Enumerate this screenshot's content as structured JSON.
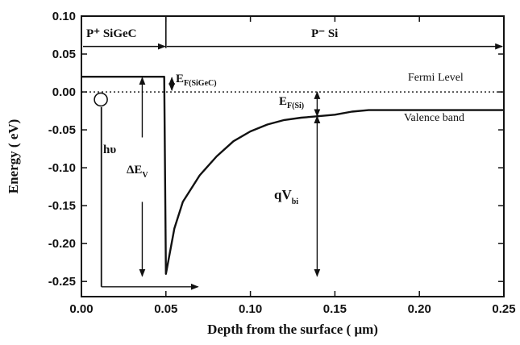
{
  "chart_data": {
    "type": "line",
    "xlabel": "Depth from the surface ( μm)",
    "ylabel": "Energy ( eV)",
    "xlim": [
      0.0,
      0.25
    ],
    "ylim": [
      -0.27,
      0.1
    ],
    "x_ticks": [
      "0.00",
      "0.05",
      "0.10",
      "0.15",
      "0.20",
      "0.25"
    ],
    "y_ticks": [
      "0.10",
      "0.05",
      "0.00",
      "-0.05",
      "-0.10",
      "-0.15",
      "-0.20",
      "-0.25"
    ],
    "x_tick_values": [
      0.0,
      0.05,
      0.1,
      0.15,
      0.2,
      0.25
    ],
    "y_tick_values": [
      0.1,
      0.05,
      0.0,
      -0.05,
      -0.1,
      -0.15,
      -0.2,
      -0.25
    ],
    "grid": false,
    "series": [
      {
        "values": [
          [
            0.0,
            0.02
          ],
          [
            0.049,
            0.02
          ],
          [
            0.05,
            -0.24
          ],
          [
            0.055,
            -0.18
          ],
          [
            0.06,
            -0.145
          ],
          [
            0.07,
            -0.11
          ],
          [
            0.08,
            -0.085
          ],
          [
            0.09,
            -0.065
          ],
          [
            0.1,
            -0.052
          ],
          [
            0.11,
            -0.043
          ],
          [
            0.12,
            -0.037
          ],
          [
            0.13,
            -0.034
          ],
          [
            0.14,
            -0.032
          ],
          [
            0.15,
            -0.03
          ],
          [
            0.16,
            -0.026
          ],
          [
            0.17,
            -0.024
          ],
          [
            0.2,
            -0.024
          ],
          [
            0.25,
            -0.024
          ]
        ]
      }
    ],
    "fermi_level": 0.0,
    "annotations": {
      "region_left": "P⁺ SiGeC",
      "region_right": "P⁻ Si",
      "fermi_label": "Fermi Level",
      "valence_label": "Valence band",
      "ef_sigec_main": "E",
      "ef_sigec_sub": "F(SiGeC)",
      "ef_si_main": "E",
      "ef_si_sub": "F(Si)",
      "hv": "hυ",
      "delta_ev_main": "ΔE",
      "delta_ev_sub": "V",
      "qvbi_main": "qV",
      "qvbi_sub": "bi"
    }
  }
}
